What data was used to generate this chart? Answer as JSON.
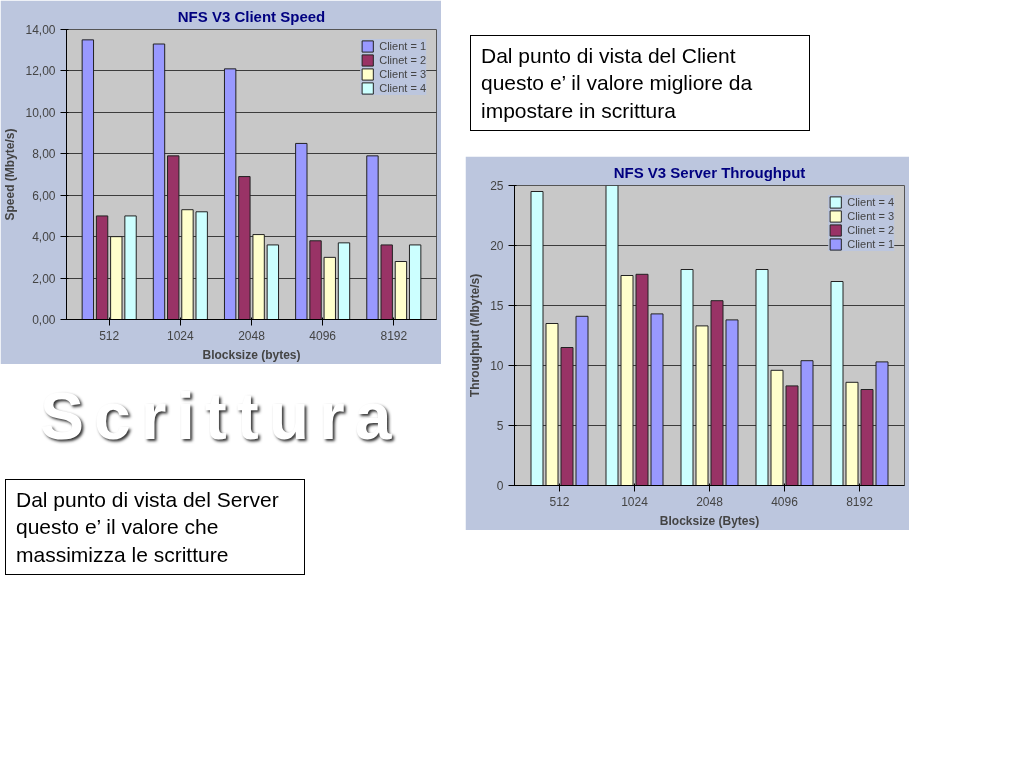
{
  "chart_data": [
    {
      "type": "bar",
      "title": "NFS V3 Client Speed",
      "xlabel": "Blocksize (bytes)",
      "ylabel": "Speed (Mbyte/s)",
      "categories": [
        "512",
        "1024",
        "2048",
        "4096",
        "8192"
      ],
      "series": [
        {
          "name": "Client = 1",
          "color": "#9999ff",
          "values": [
            13.5,
            13.3,
            12.1,
            8.5,
            7.9
          ]
        },
        {
          "name": "Clinet = 2",
          "color": "#993366",
          "values": [
            5.0,
            7.9,
            6.9,
            3.8,
            3.6
          ]
        },
        {
          "name": "Client = 3",
          "color": "#ffffcc",
          "values": [
            4.0,
            5.3,
            4.1,
            3.0,
            2.8
          ]
        },
        {
          "name": "Client = 4",
          "color": "#ccffff",
          "values": [
            5.0,
            5.2,
            3.6,
            3.7,
            3.6
          ]
        }
      ],
      "ylim": [
        0,
        14
      ],
      "yticks": [
        {
          "value": 0,
          "label": "0,00"
        },
        {
          "value": 2,
          "label": "2,00"
        },
        {
          "value": 4,
          "label": "4,00"
        },
        {
          "value": 6,
          "label": "6,00"
        },
        {
          "value": 8,
          "label": "8,00"
        },
        {
          "value": 10,
          "label": "10,00"
        },
        {
          "value": 12,
          "label": "12,00"
        },
        {
          "value": 14,
          "label": "14,00"
        }
      ],
      "grid": "y",
      "legend": "top right",
      "annotations": [
        "Dal punto di vista del Client questo e’ il valore migliore da impostare in scrittura",
        "Scrittura"
      ]
    },
    {
      "type": "bar",
      "title": "NFS V3 Server Throughput",
      "xlabel": "Blocksize (Bytes)",
      "ylabel": "Throughput (Mbyte/s)",
      "categories": [
        "512",
        "1024",
        "2048",
        "4096",
        "8192"
      ],
      "series": [
        {
          "name": "Client = 4",
          "color": "#ccffff",
          "values": [
            24.5,
            25,
            18,
            18,
            17
          ]
        },
        {
          "name": "Client = 3",
          "color": "#ffffcc",
          "values": [
            13.5,
            17.5,
            13.3,
            9.6,
            8.6
          ]
        },
        {
          "name": "Clinet = 2",
          "color": "#993366",
          "values": [
            11.5,
            17.6,
            15.4,
            8.3,
            8.0
          ]
        },
        {
          "name": "Client = 1",
          "color": "#9999ff",
          "values": [
            14.1,
            14.3,
            13.8,
            10.4,
            10.3
          ]
        }
      ],
      "ylim": [
        0,
        25
      ],
      "yticks": [
        0,
        5,
        10,
        15,
        20,
        25
      ],
      "grid": "y",
      "legend": "top right",
      "annotations": [
        "Dal punto di vista del Server questo e’ il valore che massimizza le scritture"
      ]
    }
  ]
}
